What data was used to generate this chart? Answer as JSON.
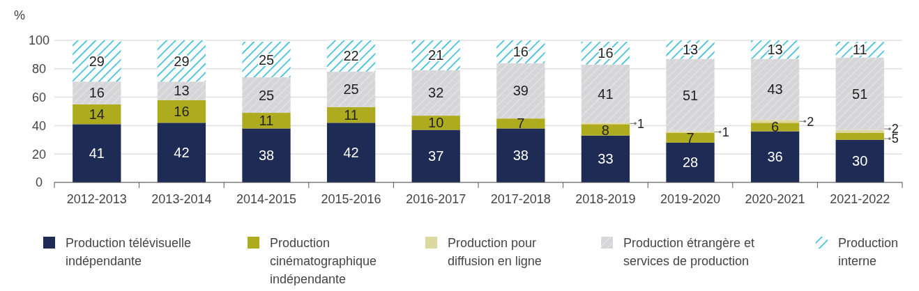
{
  "chart_data": {
    "type": "bar",
    "stacked": true,
    "ylabel": "%",
    "categories": [
      "2012-2013",
      "2013-2014",
      "2014-2015",
      "2015-2016",
      "2016-2017",
      "2017-2018",
      "2018-2019",
      "2019-2020",
      "2020-2021",
      "2021-2022"
    ],
    "series": [
      {
        "name": "Production télévisuelle indépendante",
        "color": "#1e2b55",
        "values": [
          41,
          42,
          38,
          42,
          37,
          38,
          33,
          28,
          36,
          30
        ]
      },
      {
        "name": "Production cinématographique indépendante",
        "color": "#aeab1f",
        "values": [
          14,
          16,
          11,
          11,
          10,
          7,
          8,
          7,
          6,
          5
        ]
      },
      {
        "name": "Production pour diffusion en ligne",
        "color": "#dcd8a0",
        "values": [
          null,
          null,
          null,
          null,
          null,
          null,
          1,
          1,
          2,
          2
        ]
      },
      {
        "name": "Production étrangère et services de production",
        "color": "#d6d6d8",
        "values": [
          16,
          13,
          25,
          25,
          32,
          39,
          41,
          51,
          43,
          51
        ]
      },
      {
        "name": "Production interne",
        "color": "#1fb6d3",
        "values": [
          29,
          29,
          25,
          22,
          21,
          16,
          16,
          13,
          13,
          11
        ]
      }
    ],
    "ylim": [
      0,
      100
    ],
    "yticks": [
      0,
      20,
      40,
      60,
      80,
      100
    ],
    "grid": "y",
    "legend": "bottom",
    "data_labels": true
  }
}
